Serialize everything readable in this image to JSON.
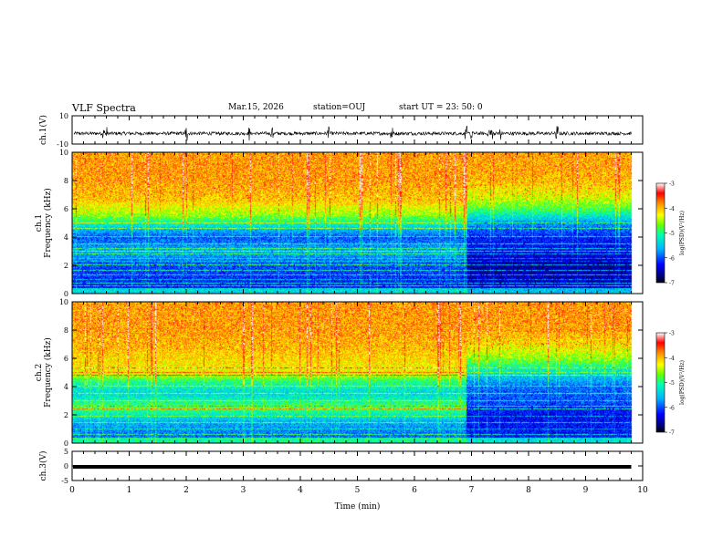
{
  "header": {
    "title": "VLF Spectra",
    "date": "Mar.15, 2026",
    "station": "station=OUJ",
    "start": "start  UT  =   23: 50: 0"
  },
  "chart_data": [
    {
      "type": "line",
      "panel": "ch1-waveform",
      "ylabel": "ch.1(V)",
      "ylim": [
        -10,
        10
      ],
      "yticks": [
        "10",
        "-10"
      ],
      "xlim": [
        0,
        10
      ],
      "baseline": -2.5,
      "noise_amplitude": 1.2,
      "spike_times_min": [
        0.55,
        0.6,
        2.0,
        3.1,
        3.5,
        4.5,
        5.6,
        6.9,
        7.0,
        7.3,
        7.35,
        7.5,
        8.5
      ]
    },
    {
      "type": "heatmap",
      "panel": "ch1-spectrogram",
      "ylabel": "ch.1\nFrequency (kHz)",
      "ylabel_lines": [
        "ch.1",
        "Frequency (kHz)"
      ],
      "ylim": [
        0,
        10
      ],
      "yticks": [
        "0",
        "2",
        "4",
        "6",
        "8",
        "10"
      ],
      "xlim": [
        0,
        10
      ],
      "data_end_min": 9.8,
      "colorbar": {
        "label": "log(PSD)(V²/Hz)",
        "range": [
          -7,
          -3
        ],
        "ticks": [
          "-3",
          "-4",
          "-5",
          "-6",
          "-7"
        ]
      },
      "regimes": [
        {
          "t0": 0,
          "t1": 6.9,
          "profile": [
            [
              0,
              -6.3
            ],
            [
              2,
              -6.0
            ],
            [
              3,
              -5.6
            ],
            [
              4,
              -6.0
            ],
            [
              4.8,
              -5.3
            ],
            [
              5.5,
              -4.6
            ],
            [
              6.5,
              -4.1
            ],
            [
              8,
              -3.9
            ],
            [
              10,
              -3.9
            ]
          ]
        },
        {
          "t0": 6.9,
          "t1": 9.8,
          "profile": [
            [
              0,
              -6.4
            ],
            [
              2,
              -6.6
            ],
            [
              3,
              -6.3
            ],
            [
              4,
              -6.2
            ],
            [
              5,
              -5.7
            ],
            [
              6,
              -4.8
            ],
            [
              6.8,
              -4.4
            ],
            [
              8,
              -4.0
            ],
            [
              10,
              -3.9
            ]
          ]
        }
      ],
      "lines_khz": [
        0.5,
        0.7,
        1.0,
        1.3,
        1.6,
        2.0,
        2.3,
        2.5,
        2.8,
        3.0,
        3.2,
        3.5,
        4.0,
        4.6,
        5.0
      ]
    },
    {
      "type": "heatmap",
      "panel": "ch2-spectrogram",
      "ylabel": "ch.2\nFrequency (kHz)",
      "ylabel_lines": [
        "ch.2",
        "Frequency (kHz)"
      ],
      "ylim": [
        0,
        10
      ],
      "yticks": [
        "0",
        "2",
        "4",
        "6",
        "8",
        "10"
      ],
      "xlim": [
        0,
        10
      ],
      "data_end_min": 9.8,
      "colorbar": {
        "label": "log(PSD)(V²/Hz)",
        "range": [
          -7,
          -3
        ],
        "ticks": [
          "-3",
          "-4",
          "-5",
          "-6",
          "-7"
        ]
      },
      "regimes": [
        {
          "t0": 0,
          "t1": 6.9,
          "profile": [
            [
              0,
              -6.0
            ],
            [
              1.5,
              -5.6
            ],
            [
              2.5,
              -4.8
            ],
            [
              3.5,
              -5.4
            ],
            [
              4.3,
              -5.0
            ],
            [
              5,
              -4.3
            ],
            [
              6,
              -4.1
            ],
            [
              8,
              -3.9
            ],
            [
              10,
              -3.9
            ]
          ]
        },
        {
          "t0": 6.9,
          "t1": 9.8,
          "profile": [
            [
              0,
              -6.2
            ],
            [
              2,
              -6.3
            ],
            [
              3,
              -6.0
            ],
            [
              4,
              -5.9
            ],
            [
              5,
              -5.3
            ],
            [
              6,
              -4.6
            ],
            [
              7,
              -4.2
            ],
            [
              8,
              -3.9
            ],
            [
              10,
              -3.9
            ]
          ]
        }
      ],
      "lines_khz": [
        0.6,
        1.0,
        1.4,
        1.9,
        2.4,
        2.6,
        3.0,
        3.5,
        4.0,
        4.8,
        5.0,
        5.3
      ]
    },
    {
      "type": "line",
      "panel": "ch3-waveform",
      "ylabel": "ch.3(V)",
      "ylim": [
        -5,
        5
      ],
      "yticks": [
        "5",
        "0",
        "-5"
      ],
      "xlim": [
        0,
        10
      ],
      "xticks": [
        "0",
        "1",
        "2",
        "3",
        "4",
        "5",
        "6",
        "7",
        "8",
        "9",
        "10"
      ],
      "xlabel": "Time (min)",
      "value": 0
    }
  ]
}
